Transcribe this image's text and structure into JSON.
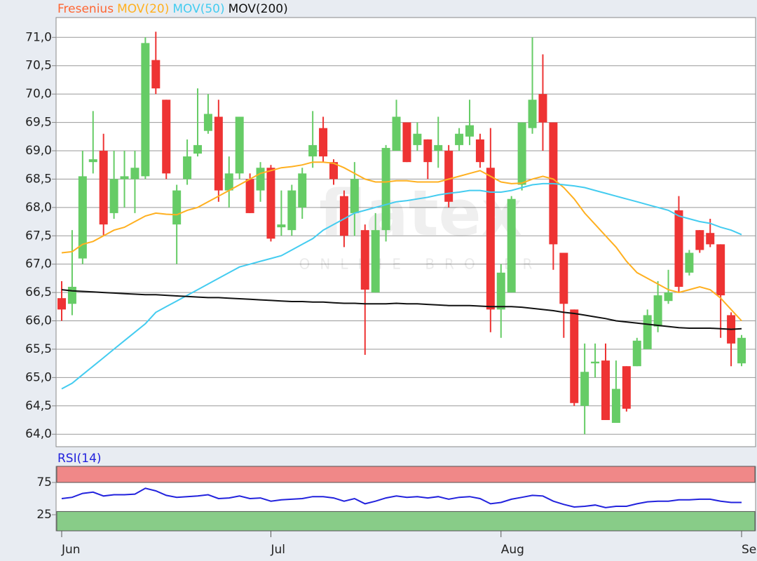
{
  "chart_data": [
    {
      "type": "candlestick",
      "legend": [
        "Fresenius"
      ],
      "categories": [
        "Jun",
        null,
        null,
        null,
        null,
        null,
        null,
        null,
        null,
        null,
        null,
        null,
        null,
        null,
        null,
        null,
        null,
        null,
        null,
        null,
        "Jul",
        null,
        null,
        null,
        null,
        null,
        null,
        null,
        null,
        null,
        null,
        null,
        null,
        null,
        null,
        null,
        null,
        null,
        null,
        null,
        null,
        null,
        "Aug",
        null,
        null,
        null,
        null,
        null,
        null,
        null,
        null,
        null,
        null,
        null,
        null,
        null,
        null,
        null,
        null,
        null,
        null,
        null,
        null,
        null,
        null,
        "Se"
      ],
      "candles": {
        "name": "Fresenius",
        "color": "#ff6633",
        "up_color": "#66cc66",
        "down_color": "#ee3333",
        "open": [
          66.4,
          66.3,
          67.1,
          68.8,
          69.0,
          67.9,
          68.5,
          68.5,
          68.55,
          70.6,
          69.9,
          67.7,
          68.5,
          68.95,
          69.35,
          69.6,
          68.3,
          68.6,
          68.5,
          68.3,
          68.7,
          67.65,
          67.6,
          68.0,
          68.9,
          69.4,
          68.8,
          68.2,
          67.9,
          67.6,
          66.5,
          67.6,
          69.0,
          69.5,
          69.1,
          69.2,
          69.0,
          69.0,
          69.1,
          69.25,
          69.2,
          68.7,
          66.2,
          66.5,
          68.4,
          69.4,
          70.0,
          69.5,
          67.2,
          66.2,
          64.5,
          65.25,
          65.3,
          64.2,
          65.2,
          65.2,
          65.5,
          65.9,
          66.35,
          67.95,
          66.85,
          67.6,
          67.55,
          67.35,
          66.1,
          65.25
        ],
        "high": [
          66.7,
          67.6,
          69.0,
          69.7,
          69.3,
          69.0,
          69.0,
          69.0,
          71.0,
          71.1,
          69.9,
          68.4,
          69.2,
          70.1,
          70.0,
          69.9,
          68.9,
          69.6,
          68.6,
          68.8,
          68.75,
          68.3,
          68.4,
          68.7,
          69.7,
          69.6,
          68.85,
          68.3,
          68.8,
          67.7,
          67.9,
          69.1,
          69.9,
          69.5,
          69.5,
          69.2,
          69.6,
          69.1,
          69.4,
          69.9,
          69.3,
          69.4,
          67.0,
          68.2,
          69.5,
          71.0,
          70.7,
          69.5,
          67.2,
          66.2,
          65.6,
          65.6,
          65.6,
          65.3,
          65.2,
          65.7,
          66.2,
          66.7,
          66.9,
          68.2,
          67.25,
          67.6,
          67.8,
          67.35,
          66.15,
          65.75
        ],
        "low": [
          66.0,
          66.1,
          67.0,
          68.6,
          67.5,
          67.8,
          68.0,
          67.9,
          68.5,
          70.0,
          68.5,
          67.0,
          68.4,
          68.9,
          69.3,
          68.1,
          68.0,
          68.5,
          67.9,
          68.1,
          67.4,
          67.5,
          67.5,
          67.8,
          68.7,
          68.8,
          68.4,
          67.3,
          67.5,
          65.4,
          66.5,
          67.4,
          69.0,
          68.8,
          69.0,
          68.5,
          68.7,
          68.0,
          69.0,
          69.1,
          68.7,
          65.8,
          65.7,
          66.5,
          68.3,
          69.3,
          69.0,
          66.9,
          65.7,
          64.5,
          64.0,
          65.0,
          64.25,
          64.2,
          64.4,
          65.2,
          65.5,
          65.8,
          66.3,
          66.5,
          66.8,
          67.2,
          67.3,
          65.7,
          65.2,
          65.2
        ],
        "close": [
          66.2,
          66.6,
          68.55,
          68.85,
          67.7,
          68.5,
          68.55,
          68.7,
          70.9,
          70.1,
          68.6,
          68.3,
          68.9,
          69.1,
          69.65,
          68.3,
          68.6,
          69.6,
          67.9,
          68.7,
          67.45,
          67.7,
          68.3,
          68.6,
          69.1,
          68.9,
          68.5,
          67.5,
          68.5,
          66.55,
          67.6,
          69.05,
          69.6,
          68.8,
          69.3,
          68.8,
          69.1,
          68.1,
          69.3,
          69.45,
          68.8,
          66.2,
          66.85,
          68.15,
          69.5,
          69.9,
          69.5,
          67.35,
          66.3,
          64.55,
          65.1,
          65.28,
          64.25,
          64.8,
          64.45,
          65.65,
          66.1,
          66.45,
          66.5,
          66.6,
          67.2,
          67.25,
          67.35,
          66.45,
          65.6,
          65.7
        ]
      },
      "series": [
        {
          "name": "MOV(20)",
          "color": "#ffb020",
          "values": [
            67.2,
            67.22,
            67.35,
            67.4,
            67.5,
            67.6,
            67.65,
            67.75,
            67.85,
            67.9,
            67.88,
            67.87,
            67.95,
            68.0,
            68.1,
            68.2,
            68.3,
            68.4,
            68.5,
            68.6,
            68.65,
            68.7,
            68.72,
            68.75,
            68.8,
            68.8,
            68.78,
            68.7,
            68.6,
            68.5,
            68.45,
            68.45,
            68.47,
            68.47,
            68.45,
            68.45,
            68.45,
            68.5,
            68.55,
            68.6,
            68.65,
            68.55,
            68.45,
            68.42,
            68.43,
            68.5,
            68.55,
            68.5,
            68.35,
            68.15,
            67.9,
            67.7,
            67.5,
            67.3,
            67.05,
            66.85,
            66.75,
            66.65,
            66.55,
            66.5,
            66.55,
            66.6,
            66.55,
            66.4,
            66.2,
            66.0
          ]
        },
        {
          "name": "MOV(50)",
          "color": "#44ccf0",
          "values": [
            64.8,
            64.9,
            65.05,
            65.2,
            65.35,
            65.5,
            65.65,
            65.8,
            65.95,
            66.15,
            66.25,
            66.35,
            66.45,
            66.55,
            66.65,
            66.75,
            66.85,
            66.95,
            67.0,
            67.05,
            67.1,
            67.15,
            67.25,
            67.35,
            67.45,
            67.6,
            67.7,
            67.8,
            67.9,
            67.95,
            68.0,
            68.05,
            68.1,
            68.12,
            68.15,
            68.18,
            68.22,
            68.25,
            68.27,
            68.3,
            68.3,
            68.27,
            68.27,
            68.3,
            68.35,
            68.4,
            68.42,
            68.42,
            68.4,
            68.38,
            68.35,
            68.3,
            68.25,
            68.2,
            68.15,
            68.1,
            68.05,
            68.0,
            67.95,
            67.85,
            67.8,
            67.75,
            67.72,
            67.65,
            67.6,
            67.52
          ]
        },
        {
          "name": "MOV(200)",
          "color": "#111111",
          "values": [
            66.55,
            66.53,
            66.52,
            66.51,
            66.5,
            66.49,
            66.48,
            66.47,
            66.46,
            66.46,
            66.45,
            66.44,
            66.43,
            66.42,
            66.41,
            66.41,
            66.4,
            66.39,
            66.38,
            66.37,
            66.36,
            66.35,
            66.34,
            66.34,
            66.33,
            66.33,
            66.32,
            66.31,
            66.31,
            66.3,
            66.3,
            66.3,
            66.31,
            66.3,
            66.3,
            66.29,
            66.28,
            66.27,
            66.27,
            66.27,
            66.26,
            66.25,
            66.25,
            66.25,
            66.24,
            66.22,
            66.2,
            66.18,
            66.15,
            66.13,
            66.1,
            66.07,
            66.04,
            66.0,
            65.98,
            65.96,
            65.94,
            65.92,
            65.9,
            65.88,
            65.87,
            65.87,
            65.87,
            65.86,
            65.85,
            65.86
          ]
        }
      ],
      "ylim": [
        63.78,
        71.35
      ],
      "yticks": [
        {
          "value": 64.0,
          "label": "64,0"
        },
        {
          "value": 64.5,
          "label": "64,5"
        },
        {
          "value": 65.0,
          "label": "65,0"
        },
        {
          "value": 65.5,
          "label": "65,5"
        },
        {
          "value": 66.0,
          "label": "66,0"
        },
        {
          "value": 66.5,
          "label": "66,5"
        },
        {
          "value": 67.0,
          "label": "67,0"
        },
        {
          "value": 67.5,
          "label": "67,5"
        },
        {
          "value": 68.0,
          "label": "68,0"
        },
        {
          "value": 68.5,
          "label": "68,5"
        },
        {
          "value": 69.0,
          "label": "69,0"
        },
        {
          "value": 69.5,
          "label": "69,5"
        },
        {
          "value": 70.0,
          "label": "70,0"
        },
        {
          "value": 70.5,
          "label": "70,5"
        },
        {
          "value": 71.0,
          "label": "71,0"
        }
      ],
      "grid": true,
      "watermark": [
        "flatex",
        "ONLINE BROKER"
      ]
    },
    {
      "type": "line",
      "title": "RSI(14)",
      "series": [
        {
          "name": "RSI(14)",
          "color": "#2222dd",
          "values": [
            50,
            52,
            58,
            60,
            54,
            56,
            56,
            57,
            66,
            62,
            55,
            52,
            53,
            54,
            56,
            50,
            51,
            54,
            50,
            51,
            46,
            48,
            49,
            50,
            53,
            53,
            51,
            46,
            50,
            42,
            46,
            51,
            54,
            52,
            53,
            51,
            53,
            49,
            52,
            53,
            50,
            42,
            44,
            49,
            52,
            55,
            54,
            46,
            41,
            37,
            38,
            40,
            36,
            38,
            38,
            42,
            45,
            46,
            46,
            48,
            48,
            49,
            49,
            46,
            44,
            44
          ]
        }
      ],
      "bands": [
        {
          "from": 75,
          "to": 100,
          "color": "#f08888"
        },
        {
          "from": 0,
          "to": 30,
          "color": "#88cc88"
        }
      ],
      "ylim": [
        0,
        100
      ],
      "yticks": [
        25,
        75
      ]
    }
  ]
}
